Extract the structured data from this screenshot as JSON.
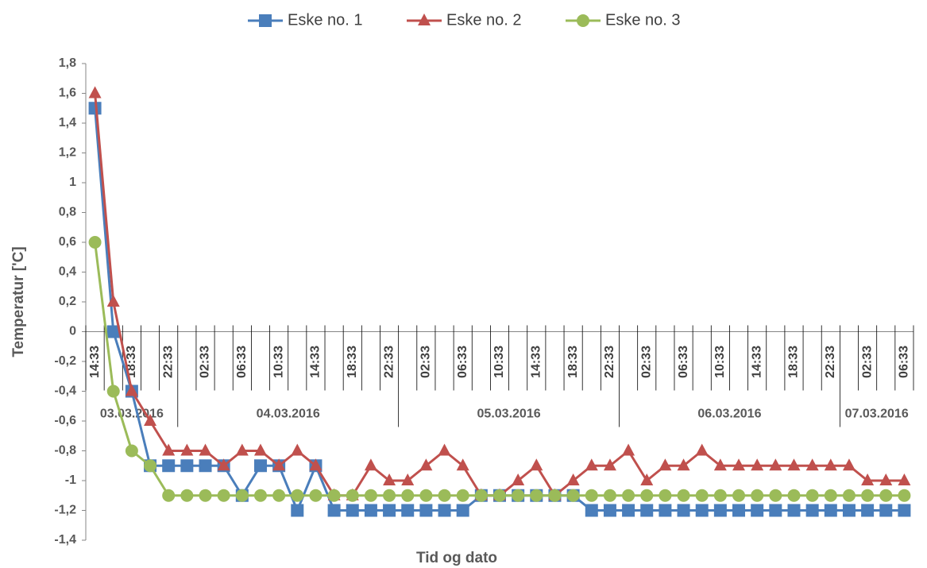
{
  "chart_data": {
    "type": "line",
    "xlabel": "Tid og dato",
    "ylabel": "Temperatur ['C]",
    "categories": [
      "14:33",
      null,
      "18:33",
      null,
      "22:33",
      null,
      "02:33",
      null,
      "06:33",
      null,
      "10:33",
      null,
      "14:33",
      null,
      "18:33",
      null,
      "22:33",
      null,
      "02:33",
      null,
      "06:33",
      null,
      "10:33",
      null,
      "14:33",
      null,
      "18:33",
      null,
      "22:33",
      null,
      "02:33",
      null,
      "06:33",
      null,
      "10:33",
      null,
      "14:33",
      null,
      "18:33",
      null,
      "22:33",
      null,
      "02:33",
      null,
      "06:33"
    ],
    "category_groups": [
      {
        "label": "03.03.2016",
        "count": 5
      },
      {
        "label": "04.03.2016",
        "count": 12
      },
      {
        "label": "05.03.2016",
        "count": 12
      },
      {
        "label": "06.03.2016",
        "count": 12
      },
      {
        "label": "07.03.2016",
        "count": 4
      }
    ],
    "series": [
      {
        "name": "Eske no. 1",
        "color": "#4a7ebb",
        "marker": "square",
        "values": [
          1.5,
          0,
          -0.4,
          -0.9,
          -0.9,
          -0.9,
          -0.9,
          -0.9,
          -1.1,
          -0.9,
          -0.9,
          -1.2,
          -0.9,
          -1.2,
          -1.2,
          -1.2,
          -1.2,
          -1.2,
          -1.2,
          -1.2,
          -1.2,
          -1.1,
          -1.1,
          -1.1,
          -1.1,
          -1.1,
          -1.1,
          -1.2,
          -1.2,
          -1.2,
          -1.2,
          -1.2,
          -1.2,
          -1.2,
          -1.2,
          -1.2,
          -1.2,
          -1.2,
          -1.2,
          -1.2,
          -1.2,
          -1.2,
          -1.2,
          -1.2,
          -1.2
        ]
      },
      {
        "name": "Eske no. 2",
        "color": "#c0504d",
        "marker": "triangle",
        "values": [
          1.6,
          0.2,
          -0.4,
          -0.6,
          -0.8,
          -0.8,
          -0.8,
          -0.9,
          -0.8,
          -0.8,
          -0.9,
          -0.8,
          -0.9,
          -1.1,
          -1.1,
          -0.9,
          -1.0,
          -1.0,
          -0.9,
          -0.8,
          -0.9,
          -1.1,
          -1.1,
          -1.0,
          -0.9,
          -1.1,
          -1.0,
          -0.9,
          -0.9,
          -0.8,
          -1.0,
          -0.9,
          -0.9,
          -0.8,
          -0.9,
          -0.9,
          -0.9,
          -0.9,
          -0.9,
          -0.9,
          -0.9,
          -0.9,
          -1.0,
          -1.0,
          -1.0
        ]
      },
      {
        "name": "Eske no. 3",
        "color": "#9bbb59",
        "marker": "circle",
        "values": [
          0.6,
          -0.4,
          -0.8,
          -0.9,
          -1.1,
          -1.1,
          -1.1,
          -1.1,
          -1.1,
          -1.1,
          -1.1,
          -1.1,
          -1.1,
          -1.1,
          -1.1,
          -1.1,
          -1.1,
          -1.1,
          -1.1,
          -1.1,
          -1.1,
          -1.1,
          -1.1,
          -1.1,
          -1.1,
          -1.1,
          -1.1,
          -1.1,
          -1.1,
          -1.1,
          -1.1,
          -1.1,
          -1.1,
          -1.1,
          -1.1,
          -1.1,
          -1.1,
          -1.1,
          -1.1,
          -1.1,
          -1.1,
          -1.1,
          -1.1,
          -1.1,
          -1.1
        ]
      }
    ],
    "ylim": [
      -1.4,
      1.8
    ],
    "yticks": [
      {
        "value": -1.4,
        "label": "-1,4"
      },
      {
        "value": -1.2,
        "label": "-1,2"
      },
      -1,
      {
        "value": -0.8,
        "label": "-0,8"
      },
      {
        "value": -0.6,
        "label": "-0,6"
      },
      {
        "value": -0.4,
        "label": "-0,4"
      },
      {
        "value": -0.2,
        "label": "-0,2"
      },
      0,
      {
        "value": 0.2,
        "label": "0,2"
      },
      {
        "value": 0.4,
        "label": "0,4"
      },
      {
        "value": 0.6,
        "label": "0,6"
      },
      {
        "value": 0.8,
        "label": "0,8"
      },
      1,
      {
        "value": 1.2,
        "label": "1,2"
      },
      {
        "value": 1.4,
        "label": "1,4"
      },
      {
        "value": 1.6,
        "label": "1,6"
      },
      {
        "value": 1.8,
        "label": "1,8"
      }
    ],
    "legend": "top"
  }
}
